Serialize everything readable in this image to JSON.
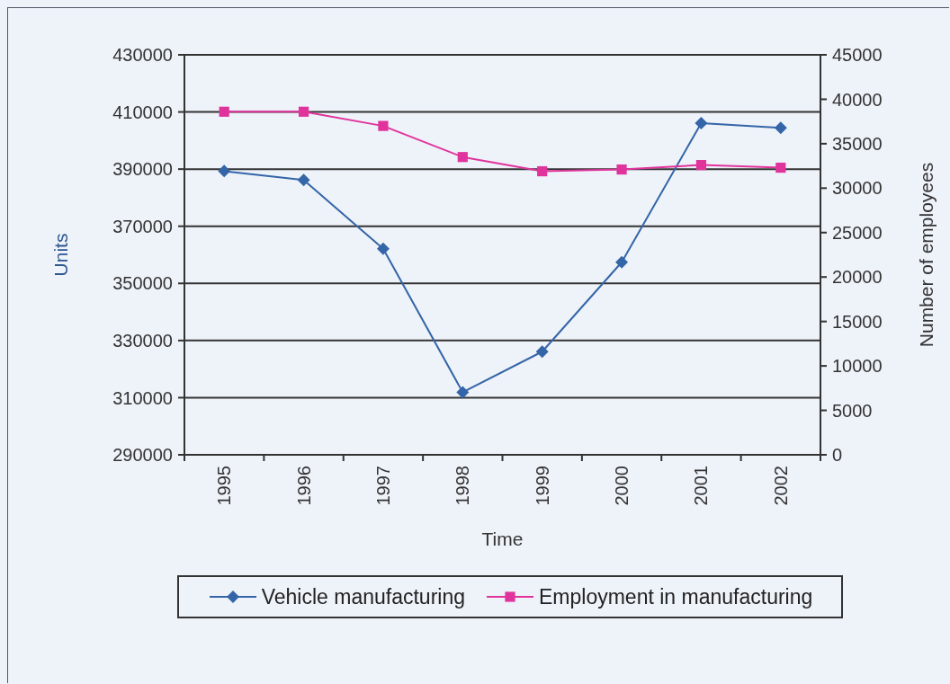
{
  "chart_data": {
    "type": "line",
    "xlabel": "Time",
    "ylabel": "Units",
    "y2label": "Number of employees",
    "categories": [
      "1995",
      "1996",
      "1997",
      "1998",
      "1999",
      "2000",
      "2001",
      "2002"
    ],
    "series": [
      {
        "name": "Vehicle manufacturing",
        "color": "#3465a8",
        "marker": "diamond",
        "values": [
          389300,
          386200,
          362100,
          311900,
          326100,
          357400,
          406100,
          404400
        ]
      },
      {
        "name": "Employment in manufacturing",
        "color": "#e0349c",
        "marker": "square",
        "axis": "y2",
        "values": [
          38600,
          38600,
          37000,
          33500,
          31900,
          32100,
          32600,
          32300
        ]
      }
    ],
    "ylim": [
      290000,
      430000
    ],
    "yticks": [
      290000,
      310000,
      330000,
      350000,
      370000,
      390000,
      410000,
      430000
    ],
    "y2lim": [
      0,
      45000
    ],
    "y2ticks": [
      0,
      5000,
      10000,
      15000,
      20000,
      25000,
      30000,
      35000,
      40000,
      45000
    ],
    "grid": "y",
    "legend": "bottom",
    "line_style": "solid"
  }
}
